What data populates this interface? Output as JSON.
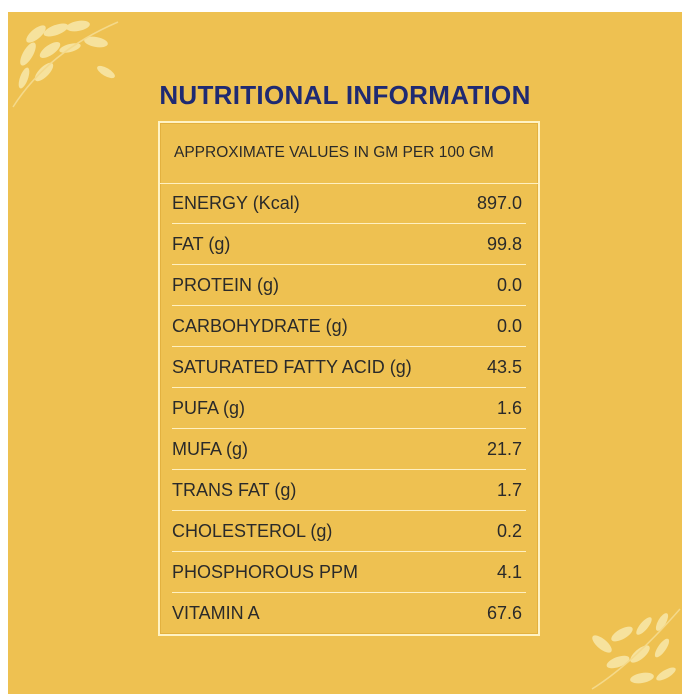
{
  "title": "NUTRITIONAL INFORMATION",
  "table": {
    "header": "APPROXIMATE VALUES IN GM PER 100 GM",
    "rows": [
      {
        "label": "ENERGY (Kcal)",
        "value": "897.0"
      },
      {
        "label": "FAT (g)",
        "value": "99.8"
      },
      {
        "label": "PROTEIN (g)",
        "value": "0.0"
      },
      {
        "label": "CARBOHYDRATE (g)",
        "value": "0.0"
      },
      {
        "label": "SATURATED FATTY ACID (g)",
        "value": "43.5"
      },
      {
        "label": "PUFA (g)",
        "value": "1.6"
      },
      {
        "label": "MUFA (g)",
        "value": "21.7"
      },
      {
        "label": "TRANS FAT (g)",
        "value": "1.7"
      },
      {
        "label": "CHOLESTEROL (g)",
        "value": "0.2"
      },
      {
        "label": "PHOSPHOROUS PPM",
        "value": "4.1"
      },
      {
        "label": "VITAMIN A",
        "value": "67.6"
      }
    ]
  },
  "colors": {
    "background": "#eec151",
    "title": "#1f2a72",
    "text": "#2a2a2a",
    "border": "#fff3c4"
  },
  "icons": [
    "leaf-decoration-top-left",
    "leaf-decoration-bottom-right"
  ]
}
